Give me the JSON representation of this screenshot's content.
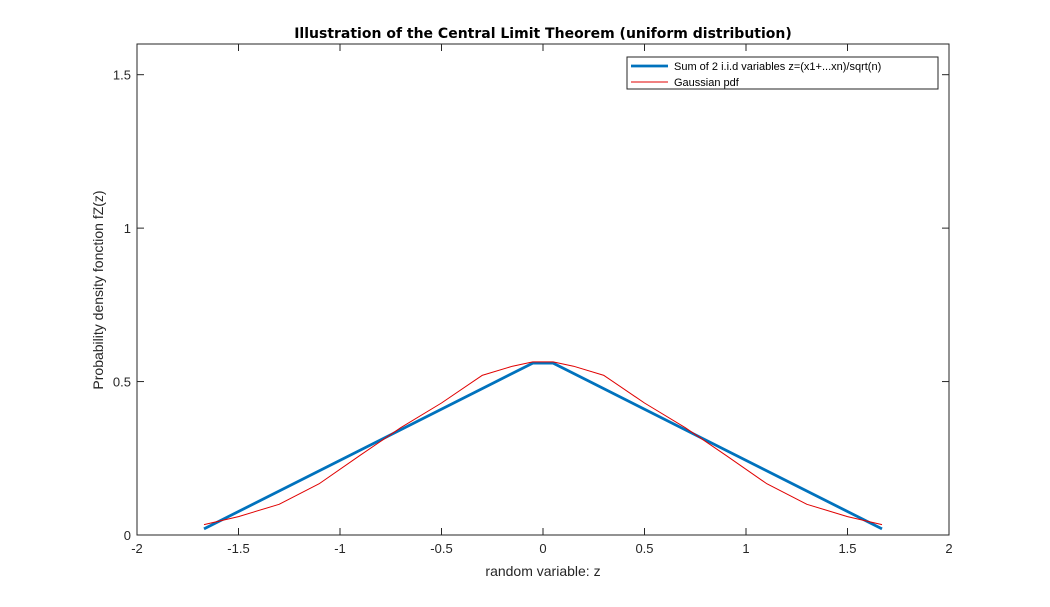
{
  "chart_data": {
    "type": "line",
    "title": "Illustration of the Central Limit Theorem (uniform distribution)",
    "xlabel": "random variable: z",
    "ylabel": "Probability density fonction fZ(z)",
    "xlim": [
      -2,
      2
    ],
    "ylim": [
      0,
      1.6
    ],
    "xticks": [
      -2,
      -1.5,
      -1,
      -0.5,
      0,
      0.5,
      1,
      1.5,
      2
    ],
    "xtick_labels": [
      "-2",
      "-1.5",
      "-1",
      "-0.5",
      "0",
      "0.5",
      "1",
      "1.5",
      "2"
    ],
    "yticks": [
      0,
      0.5,
      1,
      1.5
    ],
    "ytick_labels": [
      "0",
      "0.5",
      "1",
      "1.5"
    ],
    "grid": false,
    "legend": "top-right",
    "series": [
      {
        "name": "Sum of 2 i.i.d variables z=(x1+...xn)/sqrt(n)",
        "color": "#0072BD",
        "x": [
          -1.67,
          -0.05,
          0.05,
          1.67
        ],
        "y": [
          0.02,
          0.56,
          0.56,
          0.02
        ]
      },
      {
        "name": "Gaussian pdf",
        "color": "#E00000",
        "x": [
          -1.67,
          -1.5,
          -1.3,
          -1.1,
          -0.9,
          -0.7,
          -0.5,
          -0.3,
          -0.15,
          -0.05,
          0.05,
          0.15,
          0.3,
          0.5,
          0.7,
          0.9,
          1.1,
          1.3,
          1.5,
          1.67
        ],
        "y": [
          0.034,
          0.06,
          0.1,
          0.168,
          0.26,
          0.35,
          0.43,
          0.52,
          0.55,
          0.564,
          0.564,
          0.55,
          0.52,
          0.43,
          0.35,
          0.26,
          0.168,
          0.1,
          0.06,
          0.034
        ]
      }
    ]
  }
}
